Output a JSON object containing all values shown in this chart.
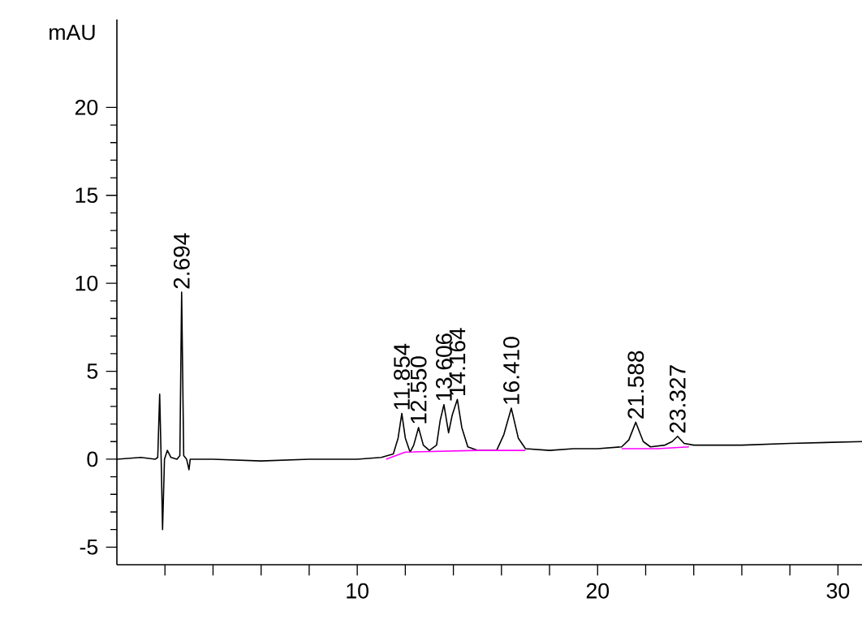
{
  "chart_data": {
    "type": "line",
    "ylabel": "mAU",
    "xlim": [
      0,
      31
    ],
    "ylim": [
      -6,
      25
    ],
    "xticks": [
      {
        "value": 2,
        "label": null
      },
      {
        "value": 4,
        "label": null
      },
      {
        "value": 6,
        "label": null
      },
      {
        "value": 8,
        "label": null
      },
      10,
      {
        "value": 12,
        "label": null
      },
      {
        "value": 14,
        "label": null
      },
      {
        "value": 16,
        "label": null
      },
      {
        "value": 18,
        "label": null
      },
      20,
      {
        "value": 22,
        "label": null
      },
      {
        "value": 24,
        "label": null
      },
      {
        "value": 26,
        "label": null
      },
      {
        "value": 28,
        "label": null
      },
      30
    ],
    "yticks": [
      -5,
      0,
      5,
      10,
      15,
      20
    ],
    "grid": false,
    "series": [
      {
        "color": "#000000",
        "x": [
          0,
          1.0,
          1.6,
          1.7,
          1.78,
          1.85,
          1.9,
          1.98,
          2.1,
          2.25,
          2.5,
          2.62,
          2.694,
          2.78,
          2.9,
          3.0,
          3.05,
          4,
          6,
          8,
          10,
          11,
          11.5,
          11.7,
          11.854,
          12.0,
          12.2,
          12.35,
          12.55,
          12.75,
          13.0,
          13.3,
          13.45,
          13.606,
          13.8,
          13.95,
          14.164,
          14.35,
          14.6,
          15,
          15.8,
          16.1,
          16.41,
          16.7,
          17,
          18,
          19,
          20,
          21,
          21.3,
          21.588,
          21.9,
          22.2,
          22.8,
          23.1,
          23.327,
          23.6,
          24,
          26,
          28,
          31
        ],
        "values": [
          0,
          0.1,
          0,
          0.1,
          3.7,
          -0.5,
          -4.0,
          0,
          0.5,
          0.1,
          0,
          0.2,
          9.5,
          0.2,
          0,
          -0.6,
          0,
          0,
          -0.1,
          0,
          0,
          0.1,
          0.3,
          1.2,
          2.6,
          1.2,
          0.4,
          0.8,
          1.8,
          0.8,
          0.5,
          0.8,
          2.2,
          3.1,
          1.5,
          2.5,
          3.4,
          1.8,
          0.7,
          0.5,
          0.5,
          1.4,
          2.9,
          1.2,
          0.6,
          0.5,
          0.6,
          0.6,
          0.7,
          1.1,
          2.1,
          1.0,
          0.7,
          0.8,
          1.0,
          1.3,
          0.9,
          0.8,
          0.8,
          0.9,
          1.0
        ]
      },
      {
        "color": "#ff00ff",
        "x": [
          11.2,
          12.0,
          15.0,
          17.0,
          17.1,
          21.0,
          22.5,
          23.8
        ],
        "values": [
          0,
          0.4,
          0.5,
          0.5,
          null,
          0.6,
          0.6,
          0.7
        ]
      }
    ],
    "annotations": [
      {
        "text": "2.694",
        "x": 2.694,
        "y": 9.5
      },
      {
        "text": "11.854",
        "x": 11.854,
        "y": 2.6
      },
      {
        "text": "12.550",
        "x": 12.55,
        "y": 1.8
      },
      {
        "text": "13.606",
        "x": 13.606,
        "y": 3.1
      },
      {
        "text": "14.164",
        "x": 14.164,
        "y": 3.4
      },
      {
        "text": "16.410",
        "x": 16.41,
        "y": 2.9
      },
      {
        "text": "21.588",
        "x": 21.588,
        "y": 2.1
      },
      {
        "text": "23.327",
        "x": 23.327,
        "y": 1.3
      }
    ]
  }
}
